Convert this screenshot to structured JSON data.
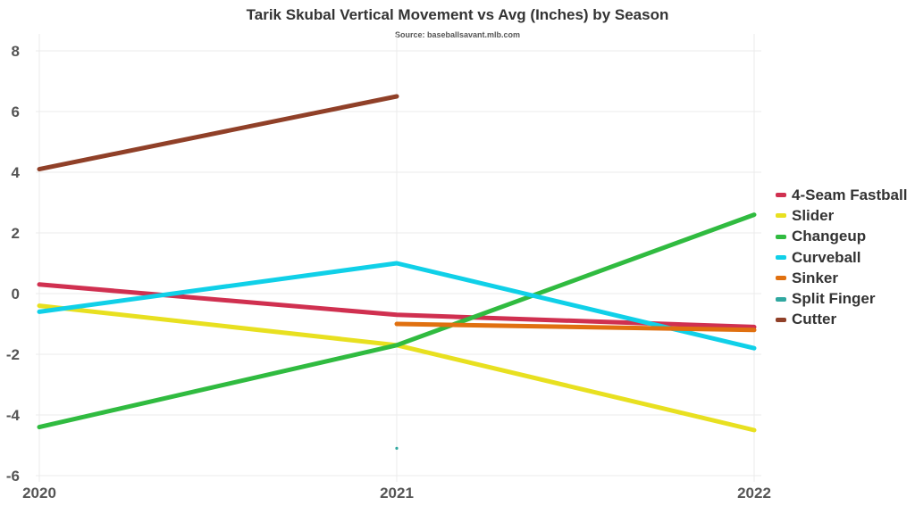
{
  "chart_data": {
    "type": "line",
    "title": "Tarik Skubal Vertical Movement vs Avg (Inches) by Season",
    "subtitle": "Source: baseballsavant.mlb.com",
    "xlabel": "",
    "ylabel": "",
    "x": [
      "2020",
      "2021",
      "2022"
    ],
    "ylim": [
      -6,
      8
    ],
    "yticks": [
      "8",
      "6",
      "4",
      "2",
      "0",
      "-2",
      "-4",
      "-6"
    ],
    "ytick_values": [
      8,
      6,
      4,
      2,
      0,
      -2,
      -4,
      -6
    ],
    "grid": true,
    "legend_position": "right",
    "series": [
      {
        "name": "4-Seam Fastball",
        "color": "#d03050",
        "values": [
          0.3,
          -0.7,
          -1.1
        ]
      },
      {
        "name": "Slider",
        "color": "#e8e020",
        "values": [
          -0.4,
          -1.7,
          -4.5
        ]
      },
      {
        "name": "Changeup",
        "color": "#30bb40",
        "values": [
          -4.4,
          -1.7,
          2.6
        ]
      },
      {
        "name": "Curveball",
        "color": "#10d0e8",
        "values": [
          -0.6,
          1.0,
          -1.8
        ]
      },
      {
        "name": "Sinker",
        "color": "#e07010",
        "values": [
          null,
          -1.0,
          -1.2
        ]
      },
      {
        "name": "Split Finger",
        "color": "#30a8a0",
        "values": [
          null,
          -5.1,
          null
        ]
      },
      {
        "name": "Cutter",
        "color": "#904028",
        "values": [
          4.1,
          6.5,
          null
        ]
      }
    ]
  }
}
